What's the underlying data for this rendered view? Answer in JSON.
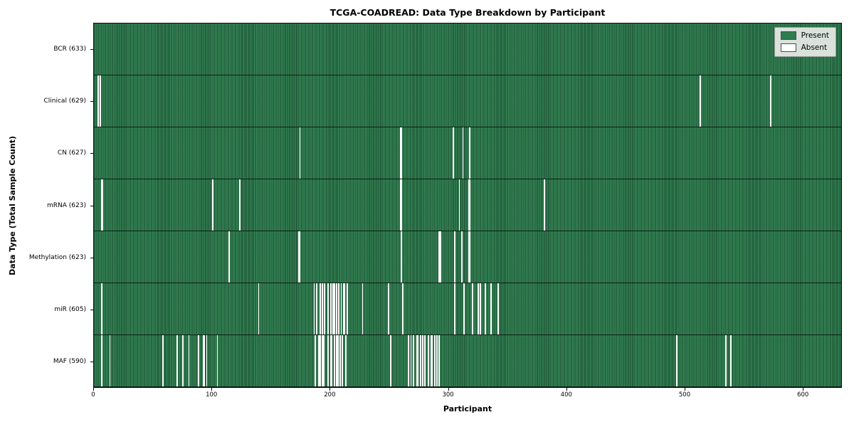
{
  "chart_data": {
    "type": "heatmap",
    "title": "TCGA-COADREAD: Data Type Breakdown by Participant",
    "xlabel": "Participant",
    "ylabel": "Data Type (Total Sample Count)",
    "n_participants": 633,
    "x_ticks": [
      0,
      100,
      200,
      300,
      400,
      500,
      600
    ],
    "legend": {
      "position": "upper right",
      "present_label": "Present",
      "absent_label": "Absent"
    },
    "colors": {
      "present": "#2e7d4f",
      "absent": "#ffffff",
      "bar_edge": "#0e3420",
      "legend_bg": "#e8ebe8",
      "legend_border": "#9a9a9a"
    },
    "rows": [
      {
        "label": "BCR",
        "total": 633,
        "axis_label": "BCR (633)",
        "absent": []
      },
      {
        "label": "Clinical",
        "total": 629,
        "axis_label": "Clinical (629)",
        "absent": [
          3,
          5,
          513,
          573
        ]
      },
      {
        "label": "CN",
        "total": 627,
        "axis_label": "CN (627)",
        "absent": [
          174,
          259,
          260,
          304,
          312,
          318
        ]
      },
      {
        "label": "mRNA",
        "total": 623,
        "axis_label": "mRNA (623)",
        "absent": [
          6,
          7,
          100,
          123,
          259,
          260,
          309,
          317,
          318,
          381
        ]
      },
      {
        "label": "Methylation",
        "total": 623,
        "axis_label": "Methylation (623)",
        "absent": [
          114,
          173,
          174,
          260,
          292,
          293,
          305,
          311,
          317,
          318
        ]
      },
      {
        "label": "miR",
        "total": 605,
        "axis_label": "miR (605)",
        "absent": [
          6,
          139,
          186,
          188,
          191,
          193,
          195,
          198,
          200,
          202,
          203,
          205,
          207,
          209,
          211,
          212,
          214,
          227,
          249,
          261,
          305,
          313,
          320,
          325,
          327,
          331,
          336,
          342
        ]
      },
      {
        "label": "MAF",
        "total": 590,
        "axis_label": "MAF (590)",
        "absent": [
          6,
          13,
          58,
          70,
          75,
          80,
          88,
          92,
          93,
          95,
          104,
          187,
          190,
          191,
          193,
          194,
          198,
          200,
          201,
          203,
          205,
          206,
          208,
          210,
          213,
          251,
          266,
          268,
          270,
          273,
          274,
          276,
          278,
          280,
          283,
          285,
          286,
          288,
          290,
          292,
          493,
          535,
          539
        ]
      }
    ]
  }
}
